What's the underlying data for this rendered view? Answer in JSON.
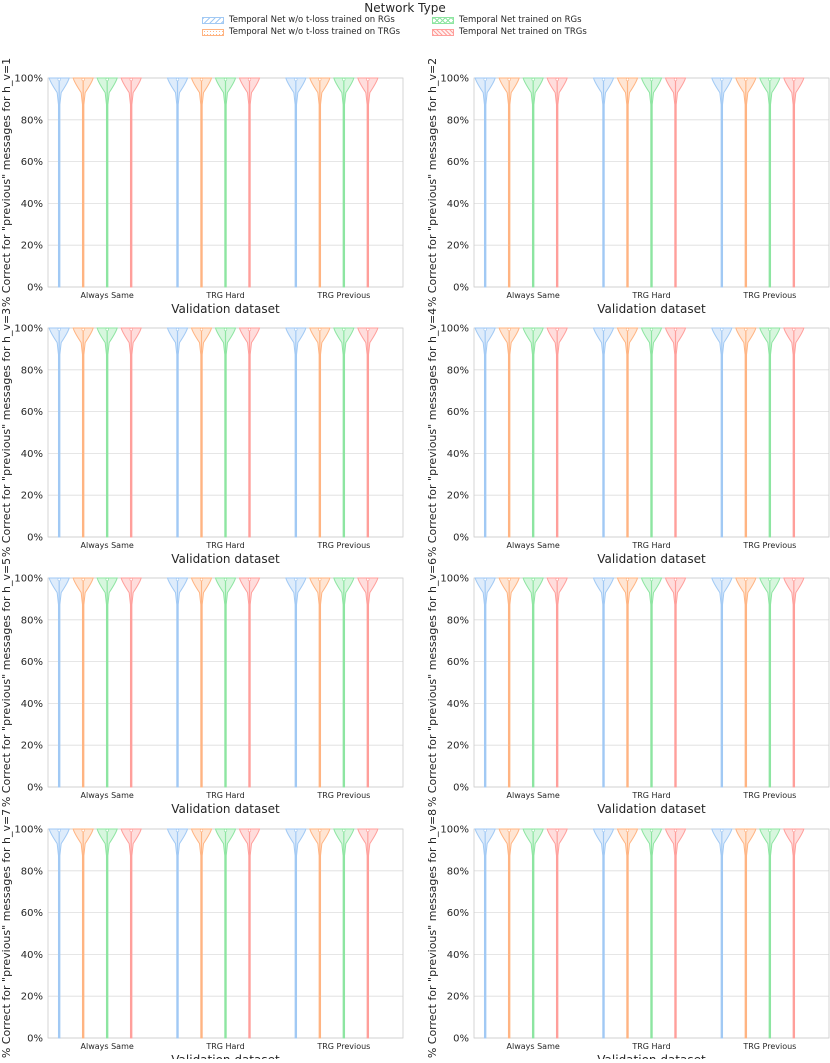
{
  "legend": {
    "title": "Network Type",
    "items": [
      {
        "label": "Temporal Net w/o t-loss trained on RGs",
        "color": "#a1c9f4",
        "hatch": "diagonal"
      },
      {
        "label": "Temporal Net w/o t-loss trained on TRGs",
        "color": "#ffb482",
        "hatch": "dots"
      },
      {
        "label": "Temporal Net trained on RGs",
        "color": "#8de5a1",
        "hatch": "cross"
      },
      {
        "label": "Temporal Net trained on TRGs",
        "color": "#ff9f9b",
        "hatch": "backslash"
      }
    ]
  },
  "chart_data": [
    {
      "type": "violin",
      "ylabel": "% Correct for \"previous\" messages for h_v=1",
      "xlabel": "Validation dataset",
      "categories": [
        "Always Same",
        "TRG Hard",
        "TRG Previous"
      ],
      "yticks": [
        "0%",
        "20%",
        "40%",
        "60%",
        "80%",
        "100%"
      ],
      "ylim": [
        0,
        100
      ],
      "grid": true,
      "series": [
        {
          "name": "Temporal Net w/o t-loss trained on RGs",
          "color": "#a1c9f4",
          "median": [
            100,
            100,
            100
          ],
          "min": [
            0,
            0,
            0
          ]
        },
        {
          "name": "Temporal Net w/o t-loss trained on TRGs",
          "color": "#ffb482",
          "median": [
            100,
            100,
            100
          ],
          "min": [
            0,
            0,
            0
          ]
        },
        {
          "name": "Temporal Net trained on RGs",
          "color": "#8de5a1",
          "median": [
            100,
            100,
            100
          ],
          "min": [
            0,
            0,
            0
          ]
        },
        {
          "name": "Temporal Net trained on TRGs",
          "color": "#ff9f9b",
          "median": [
            100,
            100,
            100
          ],
          "min": [
            0,
            0,
            0
          ]
        }
      ]
    },
    {
      "type": "violin",
      "ylabel": "% Correct for \"previous\" messages for h_v=2",
      "xlabel": "Validation dataset",
      "categories": [
        "Always Same",
        "TRG Hard",
        "TRG Previous"
      ],
      "yticks": [
        "0%",
        "20%",
        "40%",
        "60%",
        "80%",
        "100%"
      ],
      "ylim": [
        0,
        100
      ],
      "grid": true,
      "series": [
        {
          "name": "Temporal Net w/o t-loss trained on RGs",
          "color": "#a1c9f4",
          "median": [
            100,
            100,
            100
          ],
          "min": [
            0,
            0,
            0
          ]
        },
        {
          "name": "Temporal Net w/o t-loss trained on TRGs",
          "color": "#ffb482",
          "median": [
            100,
            100,
            100
          ],
          "min": [
            0,
            0,
            0
          ]
        },
        {
          "name": "Temporal Net trained on RGs",
          "color": "#8de5a1",
          "median": [
            100,
            100,
            100
          ],
          "min": [
            0,
            0,
            0
          ]
        },
        {
          "name": "Temporal Net trained on TRGs",
          "color": "#ff9f9b",
          "median": [
            100,
            100,
            100
          ],
          "min": [
            0,
            0,
            0
          ]
        }
      ]
    },
    {
      "type": "violin",
      "ylabel": "% Correct for \"previous\" messages for h_v=3",
      "xlabel": "Validation dataset",
      "categories": [
        "Always Same",
        "TRG Hard",
        "TRG Previous"
      ],
      "yticks": [
        "0%",
        "20%",
        "40%",
        "60%",
        "80%",
        "100%"
      ],
      "ylim": [
        0,
        100
      ],
      "grid": true,
      "series": [
        {
          "name": "Temporal Net w/o t-loss trained on RGs",
          "color": "#a1c9f4",
          "median": [
            100,
            100,
            100
          ],
          "min": [
            0,
            0,
            0
          ]
        },
        {
          "name": "Temporal Net w/o t-loss trained on TRGs",
          "color": "#ffb482",
          "median": [
            100,
            100,
            100
          ],
          "min": [
            0,
            0,
            0
          ]
        },
        {
          "name": "Temporal Net trained on RGs",
          "color": "#8de5a1",
          "median": [
            100,
            100,
            100
          ],
          "min": [
            0,
            0,
            0
          ]
        },
        {
          "name": "Temporal Net trained on TRGs",
          "color": "#ff9f9b",
          "median": [
            100,
            100,
            100
          ],
          "min": [
            0,
            0,
            0
          ]
        }
      ]
    },
    {
      "type": "violin",
      "ylabel": "% Correct for \"previous\" messages for h_v=4",
      "xlabel": "Validation dataset",
      "categories": [
        "Always Same",
        "TRG Hard",
        "TRG Previous"
      ],
      "yticks": [
        "0%",
        "20%",
        "40%",
        "60%",
        "80%",
        "100%"
      ],
      "ylim": [
        0,
        100
      ],
      "grid": true,
      "series": [
        {
          "name": "Temporal Net w/o t-loss trained on RGs",
          "color": "#a1c9f4",
          "median": [
            100,
            100,
            100
          ],
          "min": [
            0,
            0,
            0
          ]
        },
        {
          "name": "Temporal Net w/o t-loss trained on TRGs",
          "color": "#ffb482",
          "median": [
            100,
            100,
            100
          ],
          "min": [
            0,
            0,
            0
          ]
        },
        {
          "name": "Temporal Net trained on RGs",
          "color": "#8de5a1",
          "median": [
            100,
            100,
            100
          ],
          "min": [
            0,
            0,
            0
          ]
        },
        {
          "name": "Temporal Net trained on TRGs",
          "color": "#ff9f9b",
          "median": [
            100,
            100,
            100
          ],
          "min": [
            0,
            0,
            0
          ]
        }
      ]
    },
    {
      "type": "violin",
      "ylabel": "% Correct for \"previous\" messages for h_v=5",
      "xlabel": "Validation dataset",
      "categories": [
        "Always Same",
        "TRG Hard",
        "TRG Previous"
      ],
      "yticks": [
        "0%",
        "20%",
        "40%",
        "60%",
        "80%",
        "100%"
      ],
      "ylim": [
        0,
        100
      ],
      "grid": true,
      "series": [
        {
          "name": "Temporal Net w/o t-loss trained on RGs",
          "color": "#a1c9f4",
          "median": [
            100,
            100,
            100
          ],
          "min": [
            0,
            0,
            0
          ]
        },
        {
          "name": "Temporal Net w/o t-loss trained on TRGs",
          "color": "#ffb482",
          "median": [
            100,
            100,
            100
          ],
          "min": [
            0,
            0,
            0
          ]
        },
        {
          "name": "Temporal Net trained on RGs",
          "color": "#8de5a1",
          "median": [
            100,
            100,
            100
          ],
          "min": [
            0,
            0,
            0
          ]
        },
        {
          "name": "Temporal Net trained on TRGs",
          "color": "#ff9f9b",
          "median": [
            100,
            100,
            100
          ],
          "min": [
            0,
            0,
            0
          ]
        }
      ]
    },
    {
      "type": "violin",
      "ylabel": "% Correct for \"previous\" messages for h_v=6",
      "xlabel": "Validation dataset",
      "categories": [
        "Always Same",
        "TRG Hard",
        "TRG Previous"
      ],
      "yticks": [
        "0%",
        "20%",
        "40%",
        "60%",
        "80%",
        "100%"
      ],
      "ylim": [
        0,
        100
      ],
      "grid": true,
      "series": [
        {
          "name": "Temporal Net w/o t-loss trained on RGs",
          "color": "#a1c9f4",
          "median": [
            100,
            100,
            100
          ],
          "min": [
            0,
            0,
            0
          ]
        },
        {
          "name": "Temporal Net w/o t-loss trained on TRGs",
          "color": "#ffb482",
          "median": [
            100,
            100,
            100
          ],
          "min": [
            0,
            0,
            0
          ]
        },
        {
          "name": "Temporal Net trained on RGs",
          "color": "#8de5a1",
          "median": [
            100,
            100,
            100
          ],
          "min": [
            0,
            0,
            0
          ]
        },
        {
          "name": "Temporal Net trained on TRGs",
          "color": "#ff9f9b",
          "median": [
            100,
            100,
            100
          ],
          "min": [
            0,
            0,
            0
          ]
        }
      ]
    },
    {
      "type": "violin",
      "ylabel": "% Correct for \"previous\" messages for h_v=7",
      "xlabel": "Validation dataset",
      "categories": [
        "Always Same",
        "TRG Hard",
        "TRG Previous"
      ],
      "yticks": [
        "0%",
        "20%",
        "40%",
        "60%",
        "80%",
        "100%"
      ],
      "ylim": [
        0,
        100
      ],
      "grid": true,
      "series": [
        {
          "name": "Temporal Net w/o t-loss trained on RGs",
          "color": "#a1c9f4",
          "median": [
            100,
            100,
            100
          ],
          "min": [
            0,
            0,
            0
          ]
        },
        {
          "name": "Temporal Net w/o t-loss trained on TRGs",
          "color": "#ffb482",
          "median": [
            100,
            100,
            100
          ],
          "min": [
            0,
            0,
            0
          ]
        },
        {
          "name": "Temporal Net trained on RGs",
          "color": "#8de5a1",
          "median": [
            100,
            100,
            100
          ],
          "min": [
            0,
            0,
            0
          ]
        },
        {
          "name": "Temporal Net trained on TRGs",
          "color": "#ff9f9b",
          "median": [
            100,
            100,
            100
          ],
          "min": [
            0,
            0,
            0
          ]
        }
      ]
    },
    {
      "type": "violin",
      "ylabel": "% Correct for \"previous\" messages for h_v=8",
      "xlabel": "Validation dataset",
      "categories": [
        "Always Same",
        "TRG Hard",
        "TRG Previous"
      ],
      "yticks": [
        "0%",
        "20%",
        "40%",
        "60%",
        "80%",
        "100%"
      ],
      "ylim": [
        0,
        100
      ],
      "grid": true,
      "series": [
        {
          "name": "Temporal Net w/o t-loss trained on RGs",
          "color": "#a1c9f4",
          "median": [
            100,
            100,
            100
          ],
          "min": [
            0,
            0,
            0
          ]
        },
        {
          "name": "Temporal Net w/o t-loss trained on TRGs",
          "color": "#ffb482",
          "median": [
            100,
            100,
            100
          ],
          "min": [
            0,
            0,
            0
          ]
        },
        {
          "name": "Temporal Net trained on RGs",
          "color": "#8de5a1",
          "median": [
            100,
            100,
            100
          ],
          "min": [
            0,
            0,
            0
          ]
        },
        {
          "name": "Temporal Net trained on TRGs",
          "color": "#ff9f9b",
          "median": [
            100,
            100,
            100
          ],
          "min": [
            0,
            0,
            0
          ]
        }
      ]
    }
  ]
}
